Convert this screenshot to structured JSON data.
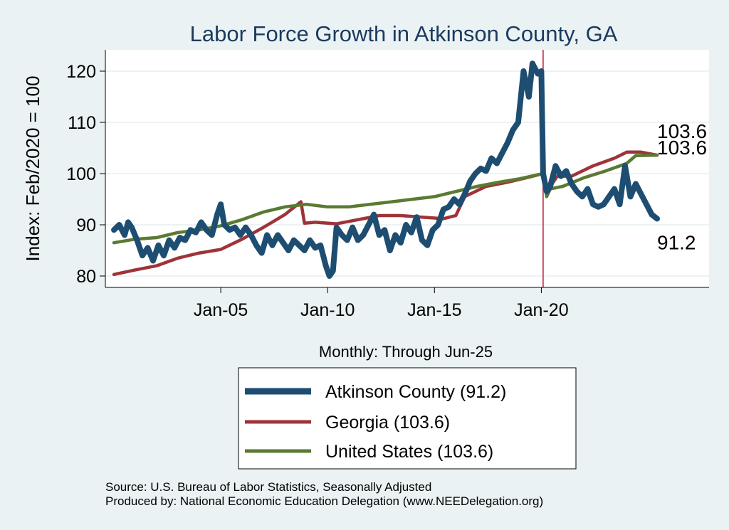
{
  "chart_data": {
    "type": "line",
    "title": "Labor Force Growth in Atkinson  County, GA",
    "ylabel": "Index: Feb/2020 = 100",
    "xlabel": "Monthly: Through Jun-25",
    "ylim": [
      79,
      124
    ],
    "x_range": [
      "2000-01",
      "2025-06"
    ],
    "x_ticks": [
      {
        "date": "2005-01",
        "label": "Jan-05"
      },
      {
        "date": "2010-01",
        "label": "Jan-10"
      },
      {
        "date": "2015-01",
        "label": "Jan-15"
      },
      {
        "date": "2020-01",
        "label": "Jan-20"
      }
    ],
    "y_ticks": [
      80,
      90,
      100,
      110,
      120
    ],
    "vline": {
      "date": "2020-02",
      "color": "#b5183a"
    },
    "grid": true,
    "legend_position": "bottom",
    "series": [
      {
        "name": "Atkinson  County (91.2)",
        "color": "#1e4d72",
        "end_label": "91.2",
        "points": [
          [
            "2000-01",
            89
          ],
          [
            "2000-04",
            90
          ],
          [
            "2000-07",
            88
          ],
          [
            "2000-09",
            90.5
          ],
          [
            "2000-11",
            89.5
          ],
          [
            "2001-02",
            87
          ],
          [
            "2001-05",
            84
          ],
          [
            "2001-08",
            85.5
          ],
          [
            "2001-11",
            83
          ],
          [
            "2002-02",
            86
          ],
          [
            "2002-05",
            84
          ],
          [
            "2002-08",
            87
          ],
          [
            "2002-11",
            85.5
          ],
          [
            "2003-02",
            87.5
          ],
          [
            "2003-05",
            87
          ],
          [
            "2003-08",
            89
          ],
          [
            "2003-11",
            88.5
          ],
          [
            "2004-02",
            90.5
          ],
          [
            "2004-05",
            89
          ],
          [
            "2004-08",
            88
          ],
          [
            "2004-11",
            92
          ],
          [
            "2005-01",
            94
          ],
          [
            "2005-03",
            90
          ],
          [
            "2005-06",
            89
          ],
          [
            "2005-09",
            89.5
          ],
          [
            "2005-12",
            88
          ],
          [
            "2006-03",
            89.5
          ],
          [
            "2006-06",
            88
          ],
          [
            "2006-09",
            86
          ],
          [
            "2006-12",
            84.5
          ],
          [
            "2007-03",
            88
          ],
          [
            "2007-06",
            86
          ],
          [
            "2007-09",
            88
          ],
          [
            "2007-12",
            86.5
          ],
          [
            "2008-03",
            85
          ],
          [
            "2008-06",
            87
          ],
          [
            "2008-09",
            86
          ],
          [
            "2008-12",
            85
          ],
          [
            "2009-03",
            87
          ],
          [
            "2009-06",
            85.5
          ],
          [
            "2009-09",
            86
          ],
          [
            "2009-12",
            82
          ],
          [
            "2010-02",
            80
          ],
          [
            "2010-04",
            81
          ],
          [
            "2010-06",
            89.5
          ],
          [
            "2010-09",
            88
          ],
          [
            "2010-12",
            87
          ],
          [
            "2011-03",
            89.5
          ],
          [
            "2011-06",
            87
          ],
          [
            "2011-09",
            88
          ],
          [
            "2011-12",
            90
          ],
          [
            "2012-03",
            92
          ],
          [
            "2012-06",
            88
          ],
          [
            "2012-09",
            89
          ],
          [
            "2012-12",
            85
          ],
          [
            "2013-03",
            88
          ],
          [
            "2013-06",
            86.5
          ],
          [
            "2013-09",
            90
          ],
          [
            "2013-12",
            88.5
          ],
          [
            "2014-03",
            91.5
          ],
          [
            "2014-06",
            87
          ],
          [
            "2014-09",
            86
          ],
          [
            "2014-12",
            89
          ],
          [
            "2015-03",
            90
          ],
          [
            "2015-06",
            93
          ],
          [
            "2015-09",
            93.5
          ],
          [
            "2015-12",
            95
          ],
          [
            "2016-03",
            94
          ],
          [
            "2016-06",
            96
          ],
          [
            "2016-09",
            98.5
          ],
          [
            "2016-12",
            100
          ],
          [
            "2017-03",
            101
          ],
          [
            "2017-06",
            100.5
          ],
          [
            "2017-09",
            103
          ],
          [
            "2017-12",
            102
          ],
          [
            "2018-03",
            104
          ],
          [
            "2018-06",
            106
          ],
          [
            "2018-09",
            108.5
          ],
          [
            "2018-12",
            110
          ],
          [
            "2019-03",
            120
          ],
          [
            "2019-06",
            115
          ],
          [
            "2019-08",
            121.5
          ],
          [
            "2019-11",
            119.5
          ],
          [
            "2020-01",
            120
          ],
          [
            "2020-02",
            100
          ],
          [
            "2020-04",
            96.5
          ],
          [
            "2020-06",
            97.5
          ],
          [
            "2020-09",
            101.5
          ],
          [
            "2020-12",
            99.5
          ],
          [
            "2021-03",
            100.5
          ],
          [
            "2021-06",
            98
          ],
          [
            "2021-09",
            96.5
          ],
          [
            "2021-12",
            95.5
          ],
          [
            "2022-03",
            97
          ],
          [
            "2022-06",
            94
          ],
          [
            "2022-09",
            93.5
          ],
          [
            "2022-12",
            94
          ],
          [
            "2023-03",
            95.5
          ],
          [
            "2023-06",
            97
          ],
          [
            "2023-09",
            94
          ],
          [
            "2023-12",
            101.5
          ],
          [
            "2024-03",
            95.5
          ],
          [
            "2024-06",
            98
          ],
          [
            "2024-09",
            96
          ],
          [
            "2024-12",
            94
          ],
          [
            "2025-03",
            92
          ],
          [
            "2025-06",
            91.2
          ]
        ]
      },
      {
        "name": "Georgia (103.6)",
        "color": "#9e3438",
        "end_label": "103.6",
        "points": [
          [
            "2000-01",
            80.3
          ],
          [
            "2001-01",
            81.2
          ],
          [
            "2002-01",
            82
          ],
          [
            "2003-01",
            83.5
          ],
          [
            "2004-01",
            84.5
          ],
          [
            "2005-01",
            85.2
          ],
          [
            "2006-01",
            87.2
          ],
          [
            "2007-01",
            89.5
          ],
          [
            "2008-01",
            92
          ],
          [
            "2008-10",
            94.5
          ],
          [
            "2008-12",
            90.3
          ],
          [
            "2009-06",
            90.5
          ],
          [
            "2010-06",
            90.2
          ],
          [
            "2011-06",
            91
          ],
          [
            "2012-06",
            91.8
          ],
          [
            "2013-06",
            91.8
          ],
          [
            "2014-06",
            91.5
          ],
          [
            "2015-06",
            91.2
          ],
          [
            "2016-01",
            91.8
          ],
          [
            "2016-06",
            95.5
          ],
          [
            "2017-06",
            97.5
          ],
          [
            "2018-06",
            98.3
          ],
          [
            "2019-06",
            99.3
          ],
          [
            "2020-02",
            100
          ],
          [
            "2020-04",
            96.5
          ],
          [
            "2020-08",
            98.5
          ],
          [
            "2020-10",
            99.5
          ],
          [
            "2021-06",
            99.5
          ],
          [
            "2022-06",
            101.5
          ],
          [
            "2023-06",
            103
          ],
          [
            "2024-01",
            104.2
          ],
          [
            "2024-09",
            104.2
          ],
          [
            "2025-06",
            103.6
          ]
        ]
      },
      {
        "name": "United States (103.6)",
        "color": "#5a7a32",
        "end_label": "103.6",
        "points": [
          [
            "2000-01",
            86.5
          ],
          [
            "2001-01",
            87.2
          ],
          [
            "2002-01",
            87.5
          ],
          [
            "2003-01",
            88.5
          ],
          [
            "2004-01",
            89
          ],
          [
            "2005-01",
            89.8
          ],
          [
            "2006-01",
            91
          ],
          [
            "2007-01",
            92.5
          ],
          [
            "2008-01",
            93.5
          ],
          [
            "2009-01",
            94
          ],
          [
            "2010-01",
            93.5
          ],
          [
            "2011-01",
            93.5
          ],
          [
            "2012-01",
            94
          ],
          [
            "2013-01",
            94.5
          ],
          [
            "2014-01",
            95
          ],
          [
            "2015-01",
            95.5
          ],
          [
            "2016-01",
            96.5
          ],
          [
            "2017-01",
            97.5
          ],
          [
            "2018-01",
            98.3
          ],
          [
            "2019-01",
            99
          ],
          [
            "2020-02",
            100
          ],
          [
            "2020-04",
            95.5
          ],
          [
            "2020-06",
            97
          ],
          [
            "2021-01",
            97.5
          ],
          [
            "2022-01",
            99.2
          ],
          [
            "2023-01",
            100.5
          ],
          [
            "2024-01",
            102
          ],
          [
            "2024-06",
            103.5
          ],
          [
            "2025-06",
            103.6
          ]
        ]
      }
    ]
  },
  "legend": {
    "items": [
      {
        "label": "Atkinson  County (91.2)"
      },
      {
        "label": "Georgia (103.6)"
      },
      {
        "label": "United States (103.6)"
      }
    ]
  },
  "footer": {
    "source": "Source: U.S. Bureau of Labor Statistics, Seasonally Adjusted",
    "produced_by": "Produced by: National Economic Education Delegation (www.NEEDelegation.org)"
  }
}
